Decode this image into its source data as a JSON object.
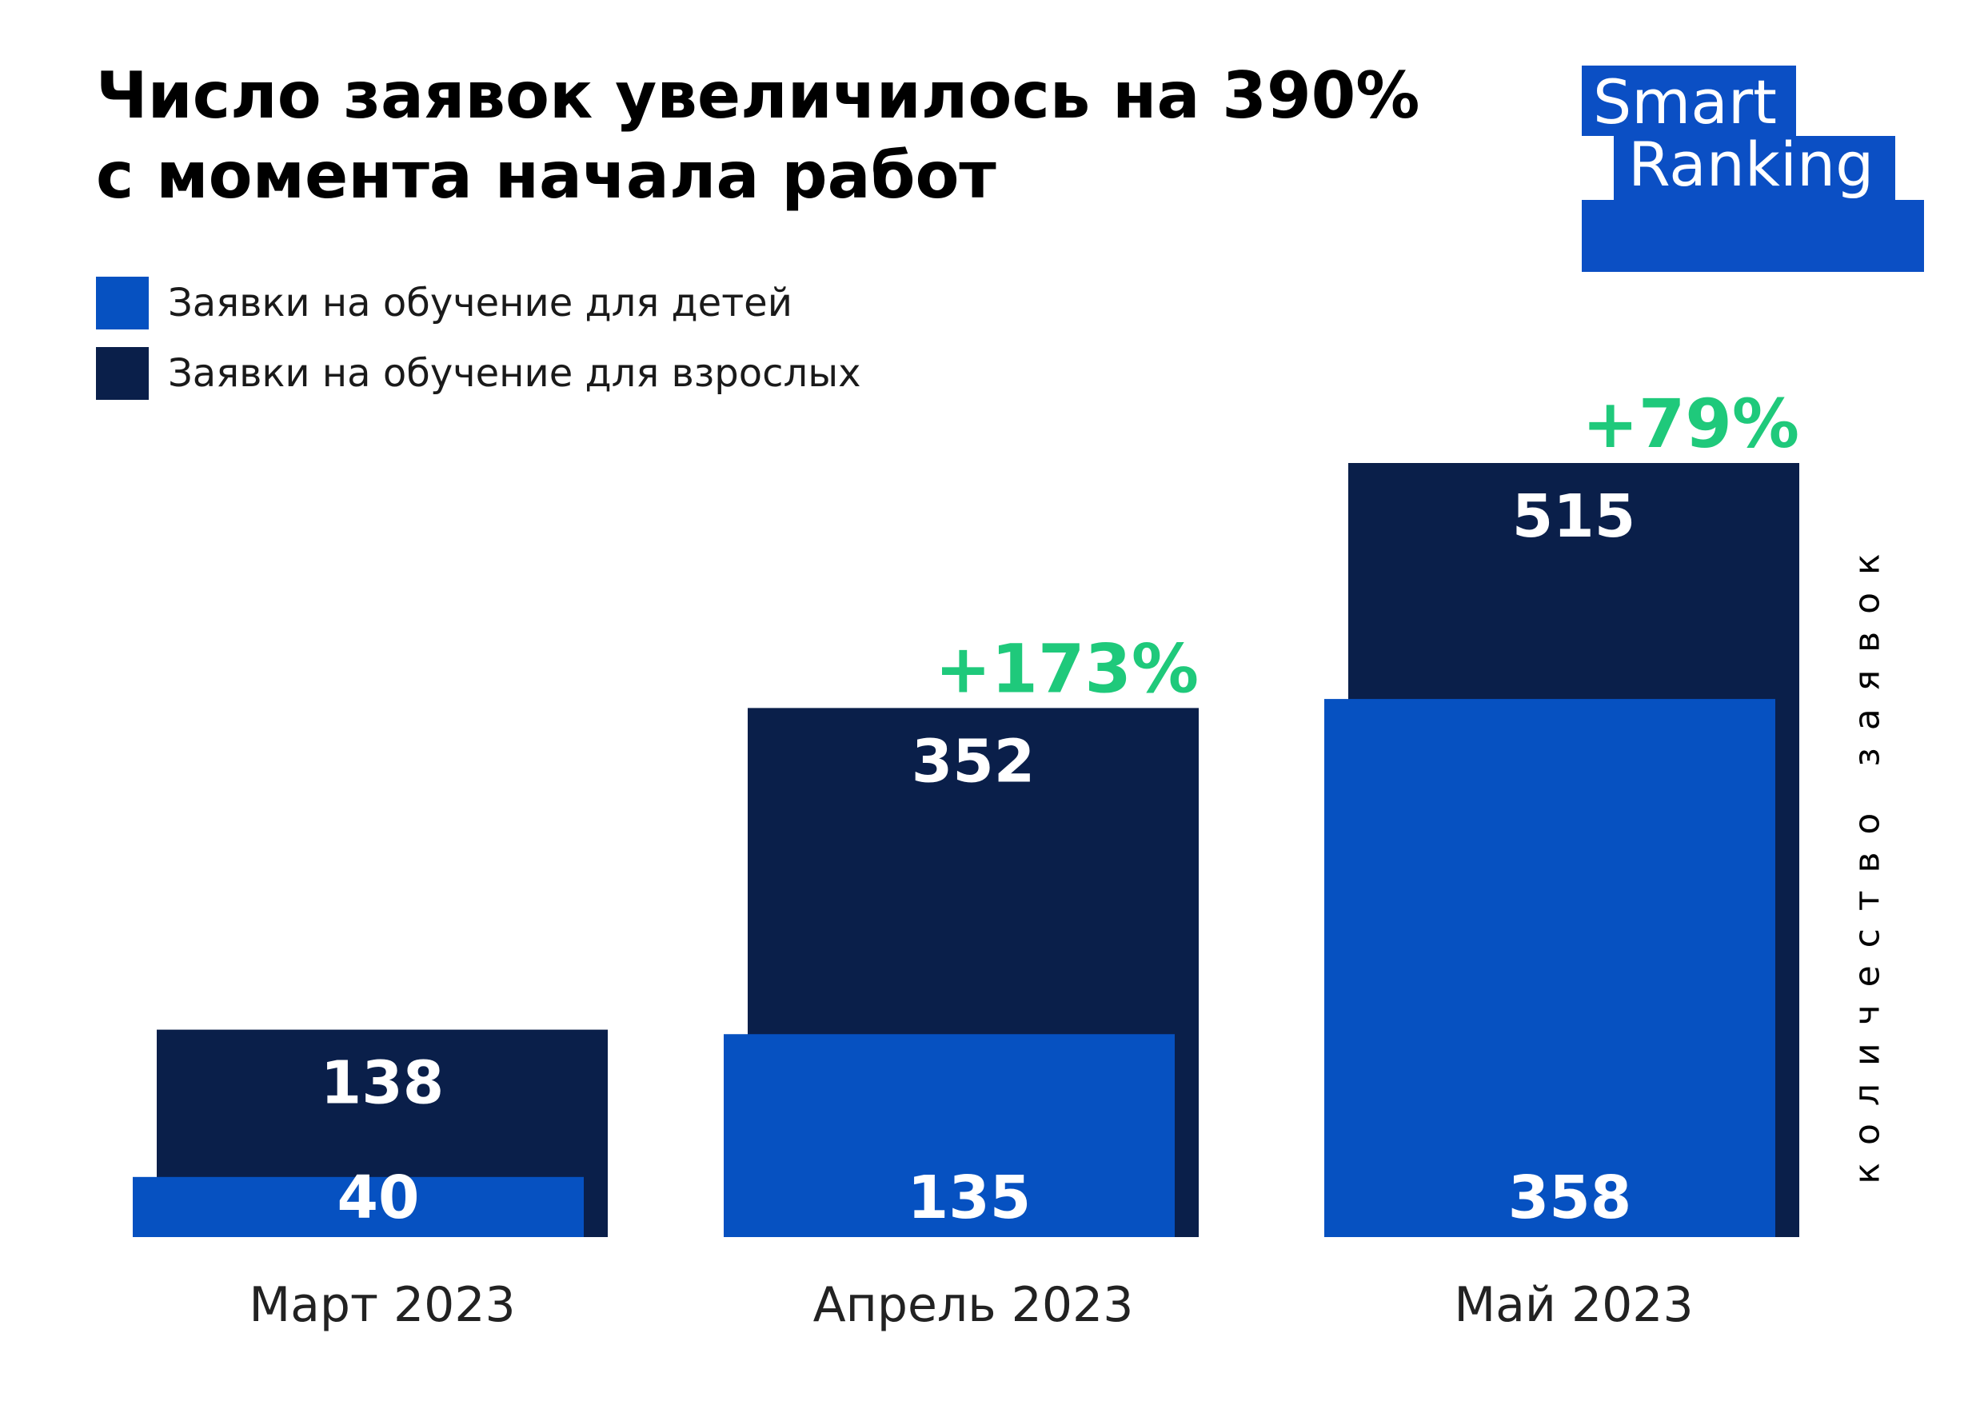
{
  "header": {
    "title_line1": "Число заявок увеличилось на 390%",
    "title_line2": "с момента начала работ"
  },
  "logo": {
    "line1": "Smart",
    "line2": "Ranking",
    "color": "#0B4FC4"
  },
  "legend": [
    {
      "label": "Заявки на обучение для детей",
      "color": "#0651C1"
    },
    {
      "label": "Заявки на обучение для взрослых",
      "color": "#0A1F4A"
    }
  ],
  "chart_data": {
    "type": "bar",
    "categories": [
      "Март 2023",
      "Апрель 2023",
      "Май 2023"
    ],
    "series": [
      {
        "name": "Заявки на обучение для взрослых",
        "values": [
          138,
          352,
          515
        ],
        "color": "#0A1F4A"
      },
      {
        "name": "Заявки на обучение для детей",
        "values": [
          40,
          135,
          358
        ],
        "color": "#0651C1"
      }
    ],
    "growth_labels": [
      "",
      "+173%",
      "+79%"
    ],
    "growth_color": "#1FC97B",
    "ylabel": "количество заявок",
    "ylim": [
      0,
      515
    ],
    "grid": false,
    "legend_position": "top-left"
  }
}
